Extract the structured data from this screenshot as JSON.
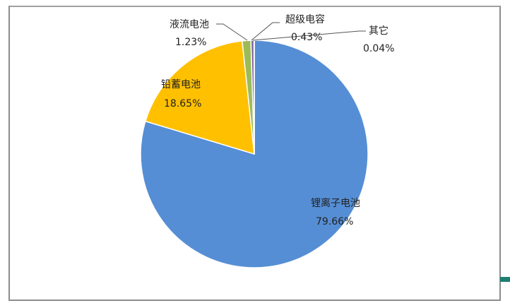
{
  "chart_data": {
    "type": "pie",
    "start_angle": "12 o'clock",
    "direction": "clockwise",
    "slices": [
      {
        "label": "锂离子电池",
        "value": 79.66,
        "display": "79.66%",
        "color": "#558ED5"
      },
      {
        "label": "铅蓄电池",
        "value": 18.65,
        "display": "18.65%",
        "color": "#FFC000"
      },
      {
        "label": "液流电池",
        "value": 1.23,
        "display": "1.23%",
        "color": "#9BBB59"
      },
      {
        "label": "超级电容",
        "value": 0.43,
        "display": "0.43%",
        "color": "#8064A2"
      },
      {
        "label": "其它",
        "value": 0.04,
        "display": "0.04%",
        "color": "#C0504D"
      }
    ],
    "legend": "none"
  }
}
